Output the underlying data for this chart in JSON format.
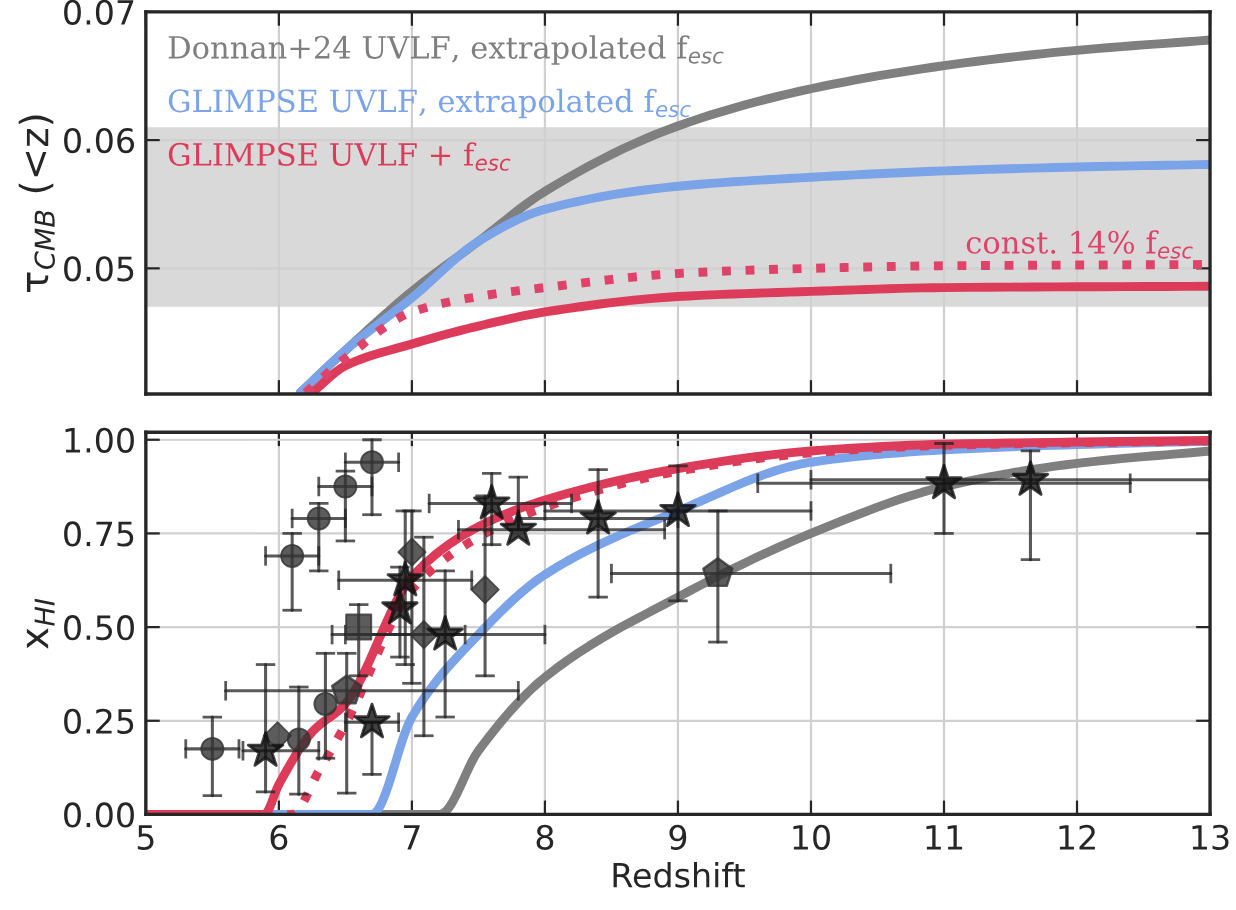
{
  "chart_data": [
    {
      "type": "line",
      "ylabel": "τ$_{CMB}$ (<z)",
      "xlim": [
        5,
        13
      ],
      "xticks": [
        5,
        6,
        7,
        8,
        9,
        10,
        11,
        12,
        13
      ],
      "ylim": [
        0.0402,
        0.07
      ],
      "yticks": [
        0.05,
        0.06,
        0.07
      ],
      "grid": true,
      "tick_labels": "y",
      "bands": [
        {
          "axis": "y",
          "from": 0.047,
          "to": 0.061,
          "color": "#d9d9d9"
        }
      ],
      "series": [
        {
          "name": "Donnan+24 UVLF, extrapolated f$_{esc}$",
          "color": "#7f7f7f",
          "line_style": "solid",
          "x": [
            6.16,
            6.5,
            7,
            7.5,
            8,
            9,
            10,
            11,
            12,
            13
          ],
          "values": [
            0.0403,
            0.0436,
            0.0482,
            0.0521,
            0.056,
            0.0611,
            0.064,
            0.0658,
            0.067,
            0.0678
          ]
        },
        {
          "name": "GLIMPSE UVLF, extrapolated f$_{esc}$",
          "color": "#7ba3e8",
          "line_style": "solid",
          "x": [
            6.16,
            6.5,
            7,
            7.5,
            8,
            9,
            10,
            11,
            12,
            13
          ],
          "values": [
            0.0403,
            0.0436,
            0.0477,
            0.0521,
            0.0546,
            0.0564,
            0.0571,
            0.0576,
            0.0579,
            0.0581
          ]
        },
        {
          "name": "GLIMPSE UVLF + f$_{esc}$",
          "color": "#dc3c5a",
          "line_style": "solid",
          "x": [
            6.25,
            6.5,
            7,
            7.5,
            8,
            9,
            10,
            11,
            13
          ],
          "values": [
            0.0403,
            0.0424,
            0.0441,
            0.0455,
            0.0466,
            0.0478,
            0.0482,
            0.0485,
            0.0486
          ]
        },
        {
          "name": "const. 14% f$_{esc}$",
          "color": "#e0436a",
          "line_style": "dotted",
          "x": [
            6.2,
            6.5,
            7,
            7.5,
            8,
            9,
            10,
            11,
            13
          ],
          "values": [
            0.0403,
            0.043,
            0.0466,
            0.0478,
            0.0485,
            0.0496,
            0.05,
            0.0502,
            0.0503
          ]
        }
      ]
    },
    {
      "type": "line",
      "xlabel": "Redshift",
      "ylabel": "x$_{HI}$",
      "xlim": [
        5,
        13
      ],
      "xticks": [
        5,
        6,
        7,
        8,
        9,
        10,
        11,
        12,
        13
      ],
      "ylim": [
        0,
        1.02
      ],
      "yticks": [
        {
          "value": 0,
          "label": "0.00"
        },
        {
          "value": 0.25,
          "label": "0.25"
        },
        {
          "value": 0.5,
          "label": "0.50"
        },
        {
          "value": 0.75,
          "label": "0.75"
        },
        {
          "value": 1,
          "label": "1.00"
        }
      ],
      "grid": true,
      "series": [
        {
          "color": "#7f7f7f",
          "line_style": "solid",
          "x": [
            5,
            7.21,
            7.5,
            8,
            9,
            10,
            11,
            12,
            13
          ],
          "values": [
            0,
            0,
            0.17,
            0.366,
            0.58,
            0.75,
            0.875,
            0.937,
            0.97
          ]
        },
        {
          "color": "#7ba3e8",
          "line_style": "solid",
          "x": [
            5,
            6.7,
            7,
            7.5,
            8,
            9,
            10,
            11,
            12,
            13
          ],
          "values": [
            0,
            0,
            0.26,
            0.48,
            0.64,
            0.81,
            0.94,
            0.973,
            0.987,
            0.996
          ]
        },
        {
          "color": "#dc3c5a",
          "line_style": "solid",
          "x": [
            5,
            5.89,
            6,
            6.25,
            6.5,
            7,
            7.5,
            8,
            9,
            10,
            11,
            13
          ],
          "values": [
            0,
            0,
            0.08,
            0.22,
            0.295,
            0.634,
            0.768,
            0.839,
            0.923,
            0.97,
            0.988,
            0.998
          ]
        },
        {
          "color": "#dc3c5a",
          "line_style": "dotted",
          "x": [
            5,
            6.1,
            6.3,
            6.5,
            7,
            7.5,
            8,
            9,
            10,
            11,
            13
          ],
          "values": [
            0,
            0,
            0.116,
            0.24,
            0.6,
            0.74,
            0.82,
            0.916,
            0.965,
            0.985,
            0.997
          ]
        },
        {
          "type": "scatter",
          "marker": "circle",
          "color": "#333333",
          "x": [
            5.5,
            6.1,
            6.3,
            6.5,
            6.7,
            6.15,
            6.35
          ],
          "values": [
            0.175,
            0.69,
            0.79,
            0.875,
            0.94,
            0.2,
            0.295
          ],
          "errors": [
            [
              0.05,
              0.26
            ],
            [
              0.545,
              0.75
            ],
            [
              0.65,
              0.83
            ],
            [
              0.73,
              0.916
            ],
            [
              0.8,
              1.0
            ],
            [
              0.054,
              0.34
            ],
            [
              0.15,
              0.43
            ]
          ],
          "xerrors": [
            [
              5.3,
              5.7
            ],
            [
              5.9,
              6.3
            ],
            [
              6.1,
              6.5
            ],
            [
              6.3,
              6.7
            ],
            [
              6.5,
              6.9
            ],
            null,
            null
          ]
        },
        {
          "type": "scatter",
          "marker": "diamond",
          "color": "#333333",
          "x": [
            5.99,
            7.0,
            7.09,
            7.55
          ],
          "values": [
            0.21,
            0.7,
            0.48,
            0.6
          ],
          "errors": [
            null,
            [
              0.35,
              0.81
            ],
            [
              0.21,
              0.74
            ],
            [
              0.37,
              0.85
            ]
          ],
          "xerrors": [
            null,
            null,
            [
              6.4,
              7.4
            ],
            null
          ]
        },
        {
          "type": "scatter",
          "marker": "square",
          "color": "#333333",
          "x": [
            6.6
          ],
          "values": [
            0.5
          ],
          "errors": [
            [
              0.37,
              0.56
            ]
          ]
        },
        {
          "type": "scatter",
          "color": "#333333",
          "x": [
            6.51,
            9.3
          ],
          "values": [
            0.33,
            0.643
          ],
          "errors": [
            [
              0.057,
              0.43
            ],
            [
              0.46,
              0.81
            ]
          ],
          "xerrors": [
            [
              5.6,
              7.8
            ],
            [
              8.5,
              10.6
            ]
          ]
        },
        {
          "type": "scatter",
          "marker": "star",
          "color": "#111111",
          "x": [
            5.9,
            6.7,
            6.91,
            6.95,
            7.25,
            7.6,
            7.8,
            8.4,
            9.0,
            11.0,
            11.65
          ],
          "values": [
            0.17,
            0.246,
            0.55,
            0.625,
            0.48,
            0.83,
            0.76,
            0.79,
            0.81,
            0.884,
            0.893
          ],
          "errors": [
            [
              0.06,
              0.4
            ],
            [
              0.107,
              0.246
            ],
            [
              0.42,
              0.66
            ],
            [
              0.4,
              0.81
            ],
            [
              0.26,
              0.65
            ],
            [
              0.72,
              0.91
            ],
            [
              0.76,
              0.9
            ],
            [
              0.58,
              0.92
            ],
            [
              0.57,
              0.93
            ],
            [
              0.75,
              0.99
            ],
            [
              0.68,
              0.97
            ]
          ],
          "xerrors": [
            [
              5.73,
              6.3
            ],
            [
              6.5,
              6.9
            ],
            null,
            [
              6.45,
              7.45
            ],
            [
              6.5,
              8.0
            ],
            [
              7.13,
              8.2
            ],
            [
              7.35,
              8.9
            ],
            [
              7.8,
              9.0
            ],
            [
              8.0,
              10.0
            ],
            [
              9.6,
              12.4
            ],
            [
              10.0,
              13.0
            ]
          ]
        }
      ]
    }
  ]
}
